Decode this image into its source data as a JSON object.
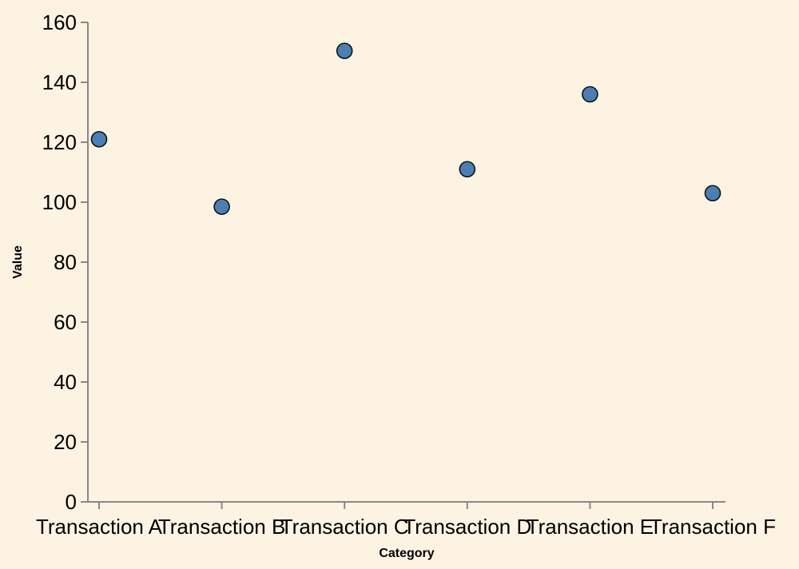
{
  "chart_data": {
    "type": "scatter",
    "categories": [
      "Transaction A",
      "Transaction B",
      "Transaction C",
      "Transaction D",
      "Transaction E",
      "Transaction F"
    ],
    "values": [
      121,
      98.5,
      150.5,
      111,
      136,
      103
    ],
    "xlabel": "Category",
    "ylabel": "Value",
    "ylim": [
      0,
      160
    ],
    "yticks": [
      0,
      20,
      40,
      60,
      80,
      100,
      120,
      140,
      160
    ],
    "grid": false,
    "legend": "none",
    "colors": {
      "point_fill": "#4b7fb3",
      "point_stroke": "#111111",
      "background": "#fdf3e3",
      "axis": "#888888"
    }
  }
}
